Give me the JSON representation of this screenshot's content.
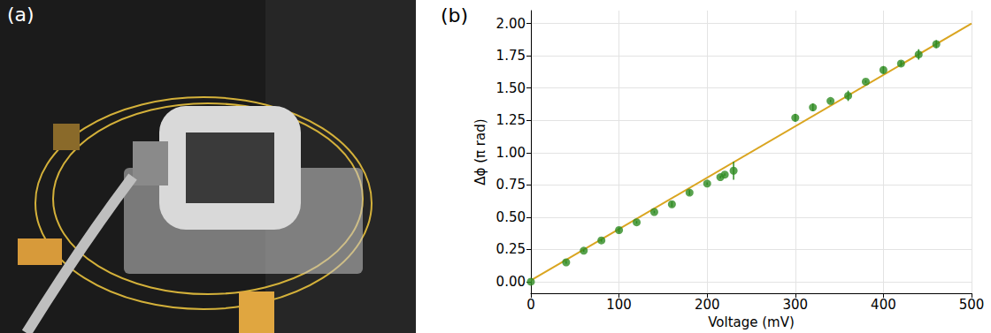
{
  "chart_data": [
    {
      "type": "image",
      "panel_label": "(a)"
    },
    {
      "type": "scatter",
      "panel_label": "(b)",
      "x_label": "Voltage (mV)",
      "y_label": "Δϕ (π rad)",
      "xlim": [
        0,
        500
      ],
      "xticks": [
        0,
        100,
        200,
        300,
        400,
        500
      ],
      "ylim": [
        -0.09,
        2.1
      ],
      "yticks": [
        {
          "value": 0,
          "label": "0.00"
        },
        {
          "value": 0.25,
          "label": "0.25"
        },
        {
          "value": 0.5,
          "label": "0.50"
        },
        {
          "value": 0.75,
          "label": "0.75"
        },
        {
          "value": 1,
          "label": "1.00"
        },
        {
          "value": 1.25,
          "label": "1.25"
        },
        {
          "value": 1.5,
          "label": "1.50"
        },
        {
          "value": 1.75,
          "label": "1.75"
        },
        {
          "value": 2,
          "label": "2.00"
        }
      ],
      "grid": true,
      "series": [
        {
          "type": "scatter",
          "color": "#2e8b22",
          "marker": "circle",
          "x": [
            0,
            40,
            60,
            80,
            100,
            120,
            140,
            160,
            180,
            200,
            215,
            220,
            230,
            300,
            320,
            340,
            360,
            380,
            400,
            420,
            440,
            460
          ],
          "values": [
            0.0,
            0.15,
            0.24,
            0.32,
            0.4,
            0.46,
            0.54,
            0.6,
            0.69,
            0.76,
            0.81,
            0.83,
            0.86,
            1.27,
            1.35,
            1.4,
            1.44,
            1.55,
            1.64,
            1.69,
            1.76,
            1.84
          ],
          "errors": [
            0.01,
            0.01,
            0.01,
            0.01,
            0.02,
            0.01,
            0.01,
            0.02,
            0.02,
            0.01,
            0.01,
            0.01,
            0.07,
            0.03,
            0.03,
            0.01,
            0.04,
            0.01,
            0.03,
            0.02,
            0.04,
            0.03
          ]
        },
        {
          "type": "line",
          "color": "#daa520",
          "line_style": "solid",
          "x": [
            0,
            500
          ],
          "values": [
            0.01,
            2.0
          ]
        }
      ]
    }
  ]
}
